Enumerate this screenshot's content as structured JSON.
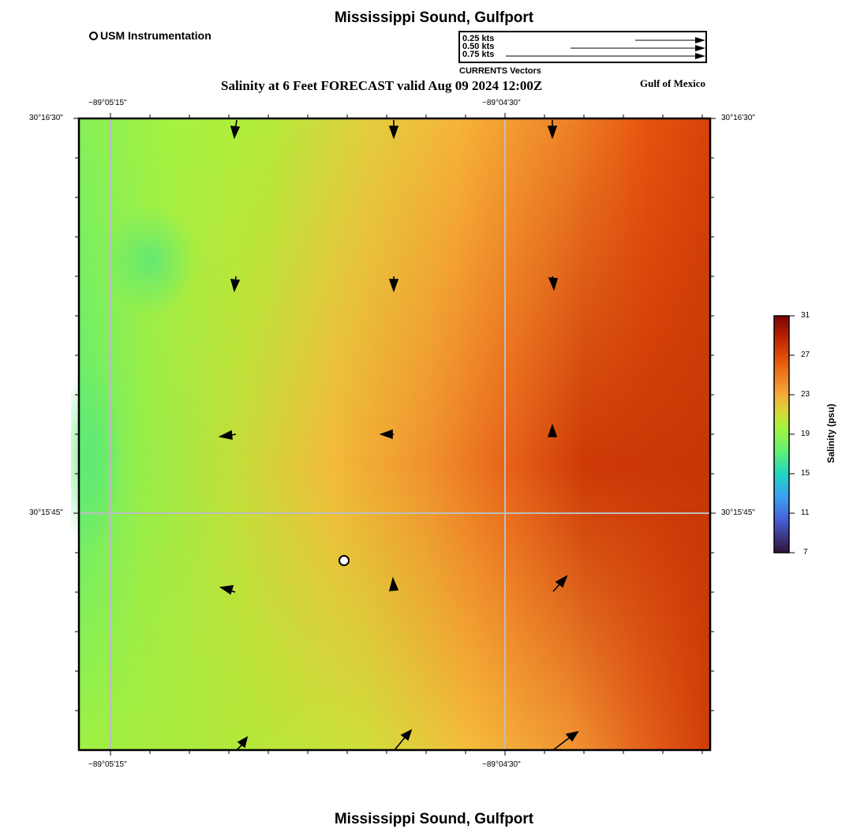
{
  "header": {
    "title": "Mississippi Sound, Gulfport",
    "subtitle": "Salinity at 6 Feet FORECAST valid Aug 09 2024 12:00Z",
    "region_label": "Gulf of Mexico",
    "footer_title": "Mississippi Sound, Gulfport"
  },
  "station_legend": {
    "label": "USM Instrumentation"
  },
  "vector_legend": {
    "items": [
      "0.25 kts",
      "0.50 kts",
      "0.75 kts"
    ],
    "caption": "CURRENTS Vectors"
  },
  "axes": {
    "lon_ticks": [
      "−89°05'15\"",
      "−89°04'30\""
    ],
    "lat_ticks": [
      "30°16'30\"",
      "30°15'45\""
    ]
  },
  "colorbar": {
    "title": "Salinity (psu)",
    "ticks": [
      "31",
      "27",
      "23",
      "19",
      "15",
      "11",
      "7"
    ],
    "colors": [
      "#7a0403",
      "#c32503",
      "#e95d0c",
      "#f5a83a",
      "#d9d638",
      "#a6f23e",
      "#62f173",
      "#1fd6c2",
      "#3aa2f5",
      "#4661d6",
      "#30123b"
    ]
  }
}
